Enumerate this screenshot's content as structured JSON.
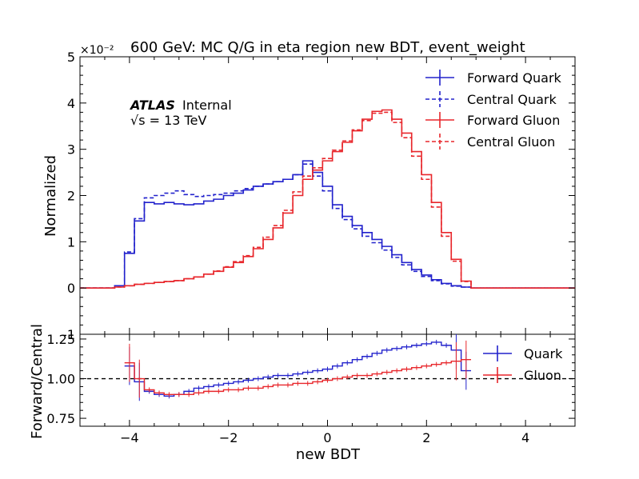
{
  "chart_data": [
    {
      "type": "line",
      "panel": "main",
      "title": "600 GeV: MC Q/G in eta region new BDT, event_weight",
      "ylabel": "Normalized",
      "xlabel": "",
      "multiplier": "×10⁻²",
      "xlim": [
        -5,
        5
      ],
      "ylim": [
        -1,
        5
      ],
      "yticks": [
        -1,
        0,
        1,
        2,
        3,
        4,
        5
      ],
      "xticks": [
        -4,
        -2,
        0,
        2,
        4
      ],
      "atlas_label": "ATLAS",
      "atlas_status": "Internal",
      "energy_label": "√s = 13 TeV",
      "legend": [
        "Forward Quark",
        "Central Quark",
        "Forward Gluon",
        "Central Gluon"
      ],
      "colors": {
        "quark": "#2222cc",
        "gluon": "#e8262b"
      },
      "x": [
        -4.4,
        -4.2,
        -4.0,
        -3.8,
        -3.6,
        -3.4,
        -3.2,
        -3.0,
        -2.8,
        -2.6,
        -2.4,
        -2.2,
        -2.0,
        -1.8,
        -1.6,
        -1.4,
        -1.2,
        -1.0,
        -0.8,
        -0.6,
        -0.4,
        -0.2,
        0.0,
        0.2,
        0.4,
        0.6,
        0.8,
        1.0,
        1.2,
        1.4,
        1.6,
        1.8,
        2.0,
        2.2,
        2.4,
        2.6,
        2.8,
        3.0,
        3.2
      ],
      "series": [
        {
          "name": "Forward Quark",
          "style": "solid",
          "values": [
            0.0,
            0.05,
            0.75,
            1.45,
            1.85,
            1.82,
            1.85,
            1.82,
            1.8,
            1.82,
            1.88,
            1.92,
            2.0,
            2.05,
            2.12,
            2.2,
            2.25,
            2.3,
            2.35,
            2.45,
            2.75,
            2.5,
            2.2,
            1.8,
            1.55,
            1.35,
            1.2,
            1.05,
            0.9,
            0.72,
            0.55,
            0.4,
            0.28,
            0.18,
            0.1,
            0.05,
            0.02,
            0.0,
            0.0
          ]
        },
        {
          "name": "Central Quark",
          "style": "dashed",
          "values": [
            0.0,
            0.05,
            0.78,
            1.5,
            1.95,
            2.0,
            2.05,
            2.1,
            2.02,
            1.98,
            2.0,
            2.02,
            2.05,
            2.1,
            2.15,
            2.2,
            2.25,
            2.3,
            2.35,
            2.45,
            2.68,
            2.42,
            2.1,
            1.72,
            1.48,
            1.28,
            1.12,
            0.98,
            0.82,
            0.66,
            0.5,
            0.36,
            0.25,
            0.16,
            0.09,
            0.04,
            0.02,
            0.0,
            0.0
          ]
        },
        {
          "name": "Forward Gluon",
          "style": "solid",
          "values": [
            0.0,
            0.02,
            0.05,
            0.08,
            0.1,
            0.12,
            0.14,
            0.16,
            0.2,
            0.24,
            0.3,
            0.36,
            0.45,
            0.55,
            0.68,
            0.85,
            1.05,
            1.3,
            1.62,
            2.0,
            2.35,
            2.55,
            2.75,
            2.95,
            3.15,
            3.4,
            3.65,
            3.82,
            3.85,
            3.65,
            3.35,
            2.95,
            2.45,
            1.85,
            1.2,
            0.62,
            0.15,
            0.0,
            0.0
          ]
        },
        {
          "name": "Central Gluon",
          "style": "dashed",
          "values": [
            0.0,
            0.02,
            0.05,
            0.08,
            0.1,
            0.12,
            0.14,
            0.16,
            0.2,
            0.24,
            0.3,
            0.37,
            0.46,
            0.57,
            0.7,
            0.88,
            1.1,
            1.35,
            1.68,
            2.08,
            2.42,
            2.6,
            2.8,
            2.98,
            3.18,
            3.42,
            3.62,
            3.78,
            3.8,
            3.58,
            3.25,
            2.85,
            2.35,
            1.75,
            1.12,
            0.58,
            0.14,
            0.0,
            0.0
          ]
        }
      ]
    },
    {
      "type": "line",
      "panel": "ratio",
      "ylabel": "Forward/Central",
      "xlabel": "new BDT",
      "xlim": [
        -5,
        5
      ],
      "ylim": [
        0.7,
        1.28
      ],
      "yticks": [
        0.75,
        1.0,
        1.25
      ],
      "ytick_labels": [
        "0.75",
        "1.00",
        "1.25"
      ],
      "xticks": [
        -4,
        -2,
        0,
        2,
        4
      ],
      "xtick_labels": [
        "−4",
        "−2",
        "0",
        "2",
        "4"
      ],
      "reference_line": 1.0,
      "legend": [
        "Quark",
        "Gluon"
      ],
      "x": [
        -4.0,
        -3.8,
        -3.6,
        -3.4,
        -3.2,
        -3.0,
        -2.8,
        -2.6,
        -2.4,
        -2.2,
        -2.0,
        -1.8,
        -1.6,
        -1.4,
        -1.2,
        -1.0,
        -0.8,
        -0.6,
        -0.4,
        -0.2,
        0.0,
        0.2,
        0.4,
        0.6,
        0.8,
        1.0,
        1.2,
        1.4,
        1.6,
        1.8,
        2.0,
        2.2,
        2.4,
        2.6,
        2.8
      ],
      "series": [
        {
          "name": "Quark",
          "values": [
            1.08,
            0.98,
            0.92,
            0.9,
            0.89,
            0.9,
            0.92,
            0.94,
            0.95,
            0.96,
            0.97,
            0.98,
            0.99,
            1.0,
            1.01,
            1.02,
            1.02,
            1.03,
            1.04,
            1.05,
            1.06,
            1.08,
            1.1,
            1.12,
            1.14,
            1.16,
            1.18,
            1.19,
            1.2,
            1.21,
            1.22,
            1.23,
            1.21,
            1.18,
            1.05
          ]
        },
        {
          "name": "Gluon",
          "values": [
            1.1,
            1.0,
            0.93,
            0.91,
            0.9,
            0.9,
            0.9,
            0.91,
            0.92,
            0.92,
            0.93,
            0.93,
            0.94,
            0.94,
            0.95,
            0.96,
            0.96,
            0.97,
            0.97,
            0.98,
            0.99,
            1.0,
            1.01,
            1.02,
            1.02,
            1.03,
            1.04,
            1.05,
            1.06,
            1.07,
            1.08,
            1.09,
            1.1,
            1.11,
            1.12
          ]
        }
      ]
    }
  ]
}
